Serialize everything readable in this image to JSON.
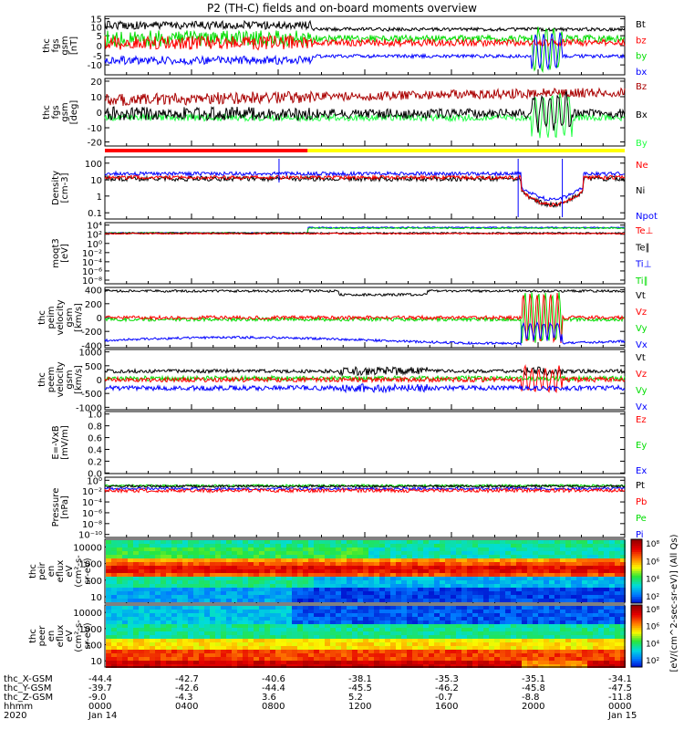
{
  "title": "P2 (TH-C) fields and on-board moments overview",
  "colors": {
    "black": "#000000",
    "red": "#ff0000",
    "green": "#00dd00",
    "blue": "#0000ff",
    "darkred": "#aa0000",
    "lightgreen": "#22ff44",
    "yellow": "#ffff00",
    "barred": "#ff0000"
  },
  "chart_data": [
    {
      "type": "line",
      "panel_id": "p1",
      "ylabel": [
        "thc",
        "fgs",
        "gsm",
        "[nT]"
      ],
      "yticks": [
        "15",
        "10",
        "5",
        "0",
        "-5",
        "-10"
      ],
      "ylim": [
        -12,
        16
      ],
      "legend": [
        {
          "text": "Bt",
          "color": "black"
        },
        {
          "text": "bz",
          "color": "red"
        },
        {
          "text": "by",
          "color": "green"
        },
        {
          "text": "bx",
          "color": "blue"
        }
      ]
    },
    {
      "type": "line",
      "panel_id": "p2",
      "ylabel": [
        "thc",
        "fgs",
        "gsm",
        "[deg]"
      ],
      "yticks": [
        "20",
        "10",
        "0",
        "-10",
        "-20"
      ],
      "ylim": [
        -25,
        22
      ],
      "legend": [
        {
          "text": "Bz",
          "color": "darkred"
        },
        {
          "text": "Bx",
          "color": "black"
        },
        {
          "text": "By",
          "color": "lightgreen"
        }
      ]
    },
    {
      "type": "line",
      "panel_id": "p3",
      "ylabel": [
        "Density",
        "[cm-3]"
      ],
      "yticks": [
        "100",
        "10",
        "1",
        "0.1"
      ],
      "ylim": [
        0.05,
        200
      ],
      "legend": [
        {
          "text": "Ne",
          "color": "red"
        },
        {
          "text": "Ni",
          "color": "black"
        },
        {
          "text": "Npot",
          "color": "blue"
        }
      ]
    },
    {
      "type": "line",
      "panel_id": "p4",
      "ylabel": [
        "moqt3",
        "[eV]"
      ],
      "yticks": [
        "10⁴",
        "10²",
        "10⁰",
        "10⁻²",
        "10⁻⁴",
        "10⁻⁶",
        "10⁻⁸"
      ],
      "ylim": [
        1e-09,
        10000.0
      ],
      "legend": [
        {
          "text": "Te⊥",
          "color": "red"
        },
        {
          "text": "Te∥",
          "color": "black"
        },
        {
          "text": "Ti⊥",
          "color": "blue"
        },
        {
          "text": "Ti∥",
          "color": "green"
        }
      ]
    },
    {
      "type": "line",
      "panel_id": "p5",
      "ylabel": [
        "thc",
        "peim",
        "velocity",
        "gsm",
        "[km/s]"
      ],
      "yticks": [
        "400",
        "200",
        "0",
        "-200",
        "-400"
      ],
      "ylim": [
        -400,
        420
      ],
      "legend": [
        {
          "text": "Vt",
          "color": "black"
        },
        {
          "text": "Vz",
          "color": "red"
        },
        {
          "text": "Vy",
          "color": "green"
        },
        {
          "text": "Vx",
          "color": "blue"
        }
      ]
    },
    {
      "type": "line",
      "panel_id": "p6",
      "ylabel": [
        "thc",
        "peem",
        "velocity",
        "gsm",
        "[km/s]"
      ],
      "yticks": [
        "1000",
        "500",
        "0",
        "-500",
        "-1000"
      ],
      "ylim": [
        -1000,
        1000
      ],
      "legend": [
        {
          "text": "Vt",
          "color": "black"
        },
        {
          "text": "Vz",
          "color": "red"
        },
        {
          "text": "Vy",
          "color": "green"
        },
        {
          "text": "Vx",
          "color": "blue"
        }
      ]
    },
    {
      "type": "line",
      "panel_id": "p7",
      "ylabel": [
        "E=-VxB",
        "[mV/m]"
      ],
      "yticks": [
        "1.0",
        "0.8",
        "0.6",
        "0.4",
        "0.2",
        "0.0"
      ],
      "ylim": [
        0,
        1
      ],
      "legend": [
        {
          "text": "Ez",
          "color": "red"
        },
        {
          "text": "Ey",
          "color": "green"
        },
        {
          "text": "Ex",
          "color": "blue"
        }
      ]
    },
    {
      "type": "line",
      "panel_id": "p8",
      "ylabel": [
        "Pressure",
        "[nPa]"
      ],
      "yticks": [
        "10⁰",
        "10⁻²",
        "10⁻⁴",
        "10⁻⁶",
        "10⁻⁸",
        "10⁻¹⁰"
      ],
      "ylim": [
        1e-10,
        1
      ],
      "legend": [
        {
          "text": "Pt",
          "color": "black"
        },
        {
          "text": "Pb",
          "color": "red"
        },
        {
          "text": "Pe",
          "color": "green"
        },
        {
          "text": "Pi",
          "color": "blue"
        }
      ]
    },
    {
      "type": "heatmap",
      "panel_id": "p9",
      "ylabel": [
        "thc",
        "peir",
        "en",
        "eflux",
        "eV",
        "(cm²-s-",
        "sr-eV)"
      ],
      "yticks": [
        "10000",
        "1000",
        "100",
        "10"
      ],
      "colorbar_ticks": [
        "10⁸",
        "10⁶",
        "10⁴",
        "10²"
      ]
    },
    {
      "type": "heatmap",
      "panel_id": "p10",
      "ylabel": [
        "thc",
        "peer",
        "en",
        "eflux",
        "eV",
        "(cm²-s-",
        "sr-eV)"
      ],
      "yticks": [
        "10000",
        "1000",
        "100",
        "10"
      ],
      "colorbar_ticks": [
        "10⁸",
        "10⁶",
        "10⁴",
        "10²"
      ]
    }
  ],
  "colorbar_label": "[eV/(cm^2-sec-sr-eV)] (All Qs)",
  "xaxis": {
    "row_labels": [
      "thc_X-GSM",
      "thc_Y-GSM",
      "thc_Z-GSM",
      "hhmm",
      "2020"
    ],
    "columns": [
      [
        "-44.4",
        "-39.7",
        "-9.0",
        "0000",
        "Jan 14"
      ],
      [
        "-42.7",
        "-42.6",
        "-4.3",
        "0400",
        ""
      ],
      [
        "-40.6",
        "-44.4",
        "3.6",
        "0800",
        ""
      ],
      [
        "-38.1",
        "-45.5",
        "5.2",
        "1200",
        ""
      ],
      [
        "-35.3",
        "-46.2",
        "-0.7",
        "1600",
        ""
      ],
      [
        "-35.1",
        "-45.8",
        "-8.8",
        "2000",
        ""
      ],
      [
        "-34.1",
        "-47.5",
        "-11.8",
        "0000",
        "Jan 15"
      ]
    ]
  }
}
